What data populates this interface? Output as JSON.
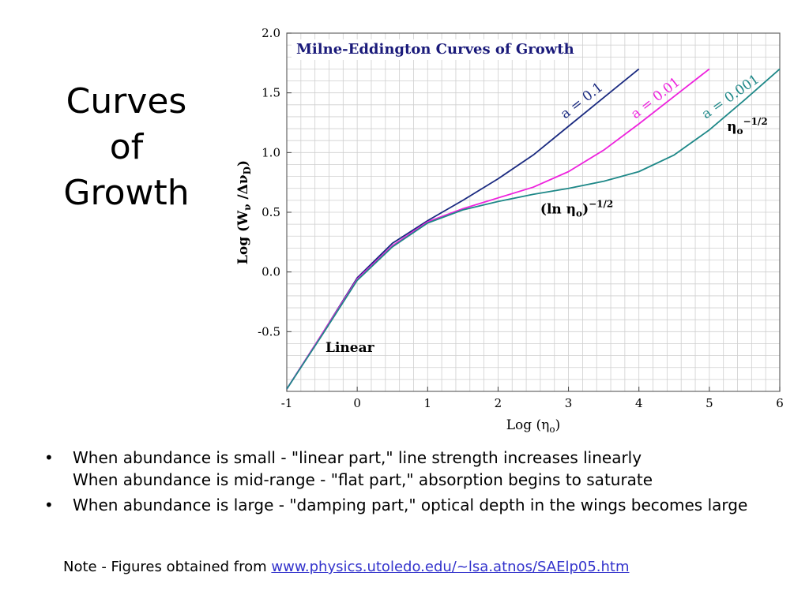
{
  "slide": {
    "title_lines": [
      "Curves",
      "of",
      "Growth"
    ],
    "bullets": [
      {
        "lines": [
          "When abundance is small - \"linear part,\" line strength increases linearly",
          "When abundance is mid-range - \"flat part,\" absorption begins to saturate"
        ]
      },
      {
        "lines": [
          "When abundance is large - \"damping part,\" optical depth in the wings becomes large"
        ]
      }
    ],
    "note_prefix": "Note - Figures obtained from ",
    "note_link": "www.physics.utoledo.edu/~lsa.atnos/SAElp05.htm",
    "link_color": "#3333cc"
  },
  "chart_data": {
    "type": "line",
    "title": "Milne-Eddington Curves of Growth",
    "xlabel": "Log (η",
    "xlabel_sub": "o",
    "xlabel_end": ")",
    "ylabel": "Log (W",
    "ylabel_sub": "ν",
    "ylabel_mid": " /Δν",
    "ylabel_sub2": "D",
    "ylabel_end": ")",
    "xlim": [
      -1,
      6
    ],
    "ylim": [
      -1.0,
      2.0
    ],
    "xticks": [
      -1,
      0,
      1,
      2,
      3,
      4,
      5,
      6
    ],
    "xtick_labels": [
      "-1",
      "0",
      "1",
      "2",
      "3",
      "4",
      "5",
      "6"
    ],
    "yticks": [
      -0.5,
      0.0,
      0.5,
      1.0,
      1.5,
      2.0
    ],
    "ytick_labels": [
      "-0.5",
      "0.0",
      "0.5",
      "1.0",
      "1.5",
      "2.0"
    ],
    "grid": true,
    "title_color": "#1a1a7a",
    "series": [
      {
        "name": "a = 0.1",
        "color": "#1a2a80",
        "x": [
          -1,
          -0.5,
          0,
          0.5,
          1,
          1.5,
          2,
          2.5,
          3,
          3.5,
          4
        ],
        "y": [
          -0.98,
          -0.52,
          -0.05,
          0.24,
          0.43,
          0.6,
          0.78,
          0.98,
          1.22,
          1.46,
          1.7
        ]
      },
      {
        "name": "a = 0.01",
        "color": "#ee22dd",
        "x": [
          -1,
          -0.5,
          0,
          0.5,
          1,
          1.5,
          2,
          2.5,
          3,
          3.5,
          4,
          4.5,
          5
        ],
        "y": [
          -0.98,
          -0.52,
          -0.06,
          0.22,
          0.42,
          0.53,
          0.62,
          0.71,
          0.84,
          1.02,
          1.24,
          1.47,
          1.7
        ]
      },
      {
        "name": "a = 0.001",
        "color": "#1e8888",
        "x": [
          -1,
          -0.5,
          0,
          0.5,
          1,
          1.5,
          2,
          2.5,
          3,
          3.5,
          4,
          4.5,
          5,
          5.5,
          6
        ],
        "y": [
          -0.98,
          -0.53,
          -0.07,
          0.21,
          0.41,
          0.52,
          0.59,
          0.65,
          0.7,
          0.76,
          0.84,
          0.98,
          1.19,
          1.44,
          1.7
        ]
      }
    ],
    "annotations": [
      {
        "text": "Linear",
        "x": -0.45,
        "y": -0.67,
        "color": "#000000"
      },
      {
        "text": "(ln η",
        "sub": "o",
        "end": ")",
        "sup": "−1/2",
        "x": 2.6,
        "y": 0.49,
        "color": "#000000"
      },
      {
        "text": "η",
        "sub": "o",
        "sup": "−1/2",
        "x": 5.25,
        "y": 1.18,
        "color": "#000000"
      }
    ],
    "series_labels": [
      {
        "series": 0,
        "text": "a = 0.1",
        "x": 2.95,
        "y": 1.28,
        "angle": -38
      },
      {
        "series": 1,
        "text": "a = 0.01",
        "x": 3.95,
        "y": 1.28,
        "angle": -38
      },
      {
        "series": 2,
        "text": "a = 0.001",
        "x": 4.95,
        "y": 1.28,
        "angle": -35
      }
    ]
  }
}
